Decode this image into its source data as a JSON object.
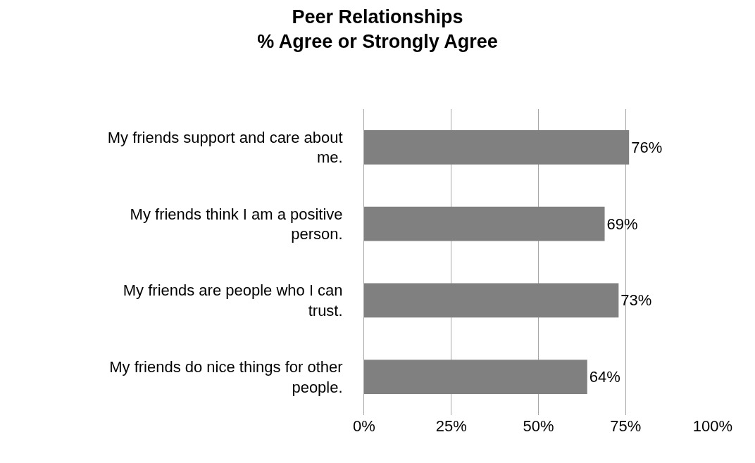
{
  "chart_data": {
    "type": "bar",
    "orientation": "horizontal",
    "title": "Peer Relationships\n% Agree or Strongly Agree",
    "categories": [
      "My friends support and care about me.",
      "My friends think I am a positive person.",
      "My friends are people who I can trust.",
      "My friends do nice things for other people."
    ],
    "values": [
      76,
      69,
      73,
      64
    ],
    "value_labels": [
      "76%",
      "69%",
      "73%",
      "64%"
    ],
    "color": "#808080",
    "xlim": [
      0,
      100
    ],
    "xticks": [
      {
        "value": 0,
        "label": "0%"
      },
      {
        "value": 25,
        "label": "25%"
      },
      {
        "value": 50,
        "label": "50%"
      },
      {
        "value": 75,
        "label": "75%"
      },
      {
        "value": 100,
        "label": "100%"
      }
    ],
    "grid": "x"
  }
}
